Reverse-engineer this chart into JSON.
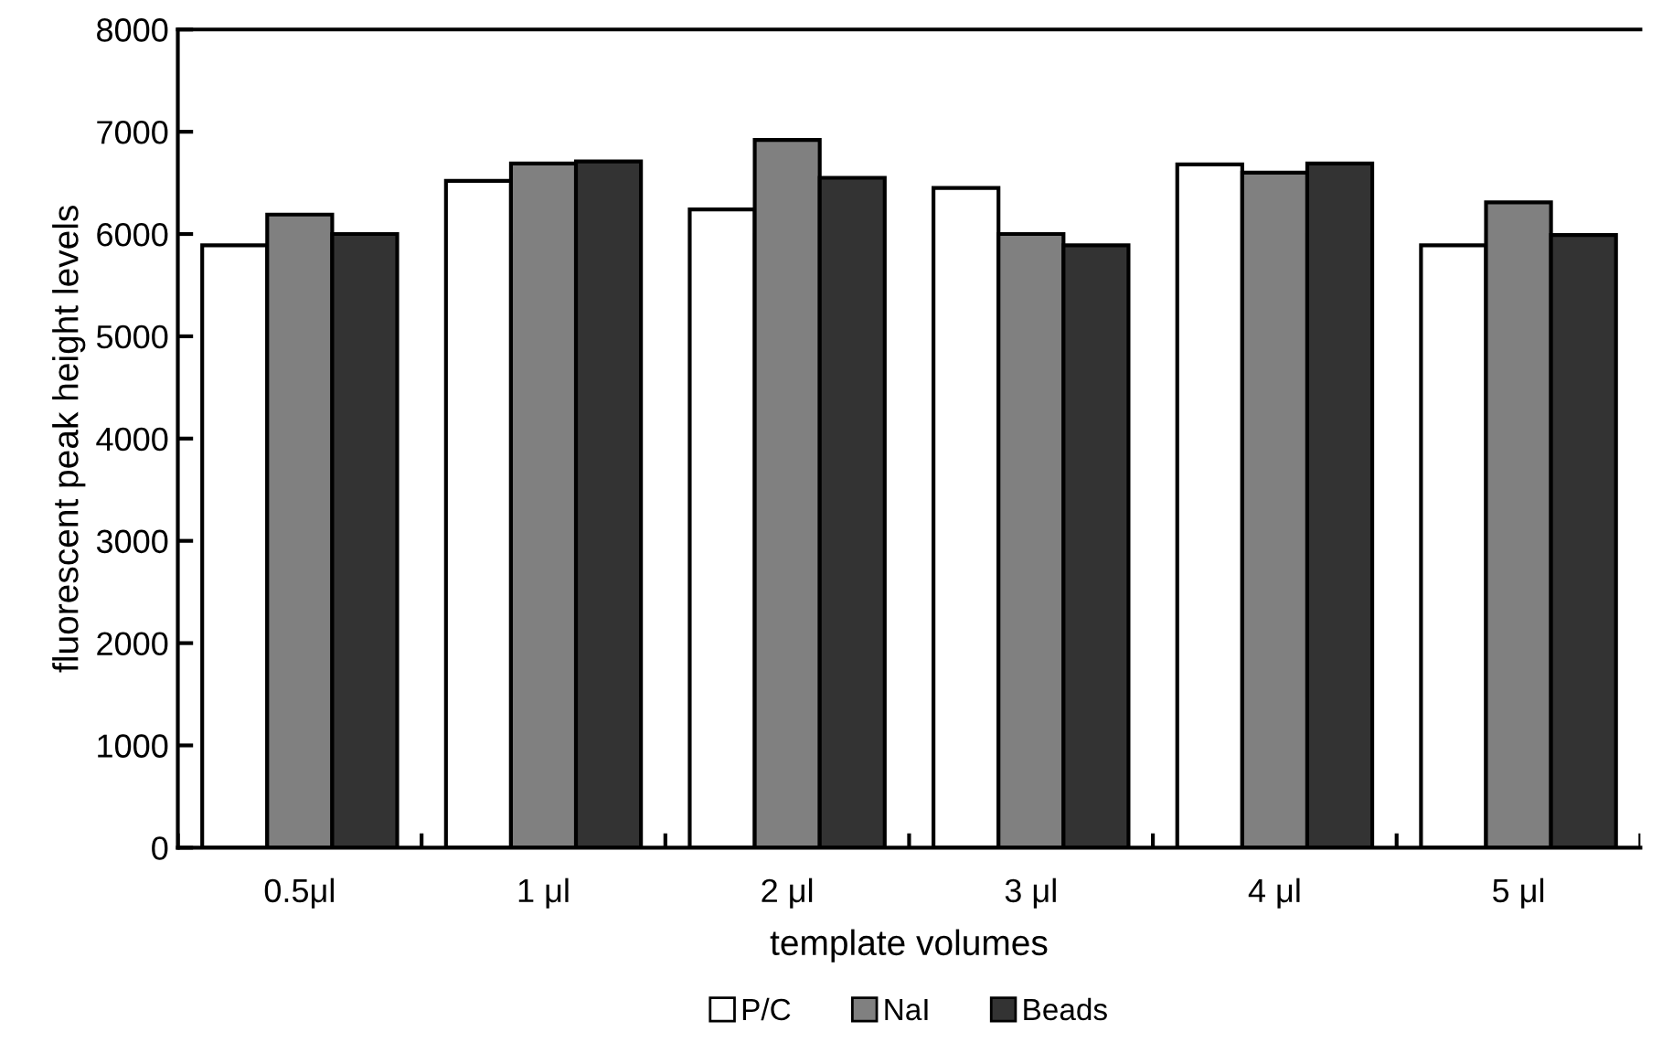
{
  "chart_data": {
    "type": "bar",
    "xlabel": "template volumes",
    "ylabel": "fluorescent peak height levels",
    "categories": [
      "0.5μl",
      "1 μl",
      "2 μl",
      "3 μl",
      "4 μl",
      "5 μl"
    ],
    "series": [
      {
        "name": "P/C",
        "color": "#ffffff",
        "values": [
          5890,
          6520,
          6240,
          6450,
          6680,
          5890
        ]
      },
      {
        "name": "NaI",
        "color": "#808080",
        "values": [
          6190,
          6690,
          6920,
          6000,
          6600,
          6310
        ]
      },
      {
        "name": "Beads",
        "color": "#333333",
        "values": [
          6000,
          6710,
          6550,
          5890,
          6690,
          5990
        ]
      }
    ],
    "ylim": [
      0,
      8000
    ],
    "yticks": [
      0,
      1000,
      2000,
      3000,
      4000,
      5000,
      6000,
      7000,
      8000
    ],
    "grid": false,
    "legend": "bottom"
  }
}
